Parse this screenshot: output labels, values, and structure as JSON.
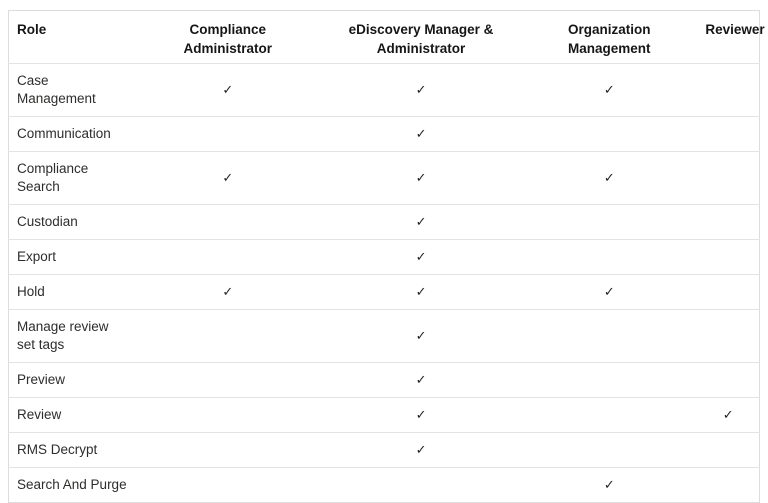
{
  "colors": {
    "background": "#ffffff",
    "outer_border": "#dcdcdc",
    "row_border": "#e3e3e3",
    "header_text": "#161616",
    "body_text": "#2e2d2c",
    "check": "#242424"
  },
  "table": {
    "check_mark": "✓",
    "columns": [
      {
        "id": "role",
        "lines": [
          "Role"
        ]
      },
      {
        "id": "compliance_administrator",
        "lines": [
          "Compliance",
          "Administrator"
        ]
      },
      {
        "id": "ediscovery_manager_administrator",
        "lines": [
          "eDiscovery Manager &",
          "Administrator"
        ]
      },
      {
        "id": "organization_management",
        "lines": [
          "Organization",
          "Management"
        ]
      },
      {
        "id": "reviewer",
        "lines": [
          "Reviewer"
        ]
      }
    ],
    "rows": [
      {
        "role": "Case Management",
        "permissions": {
          "compliance_administrator": true,
          "ediscovery_manager_administrator": true,
          "organization_management": true,
          "reviewer": false
        }
      },
      {
        "role": "Communication",
        "permissions": {
          "compliance_administrator": false,
          "ediscovery_manager_administrator": true,
          "organization_management": false,
          "reviewer": false
        }
      },
      {
        "role": "Compliance Search",
        "permissions": {
          "compliance_administrator": true,
          "ediscovery_manager_administrator": true,
          "organization_management": true,
          "reviewer": false
        }
      },
      {
        "role": "Custodian",
        "permissions": {
          "compliance_administrator": false,
          "ediscovery_manager_administrator": true,
          "organization_management": false,
          "reviewer": false
        }
      },
      {
        "role": "Export",
        "permissions": {
          "compliance_administrator": false,
          "ediscovery_manager_administrator": true,
          "organization_management": false,
          "reviewer": false
        }
      },
      {
        "role": "Hold",
        "permissions": {
          "compliance_administrator": true,
          "ediscovery_manager_administrator": true,
          "organization_management": true,
          "reviewer": false
        }
      },
      {
        "role": "Manage review set tags",
        "permissions": {
          "compliance_administrator": false,
          "ediscovery_manager_administrator": true,
          "organization_management": false,
          "reviewer": false
        }
      },
      {
        "role": "Preview",
        "permissions": {
          "compliance_administrator": false,
          "ediscovery_manager_administrator": true,
          "organization_management": false,
          "reviewer": false
        }
      },
      {
        "role": "Review",
        "permissions": {
          "compliance_administrator": false,
          "ediscovery_manager_administrator": true,
          "organization_management": false,
          "reviewer": true
        }
      },
      {
        "role": "RMS Decrypt",
        "permissions": {
          "compliance_administrator": false,
          "ediscovery_manager_administrator": true,
          "organization_management": false,
          "reviewer": false
        }
      },
      {
        "role": "Search And Purge",
        "permissions": {
          "compliance_administrator": false,
          "ediscovery_manager_administrator": false,
          "organization_management": true,
          "reviewer": false
        }
      }
    ]
  }
}
